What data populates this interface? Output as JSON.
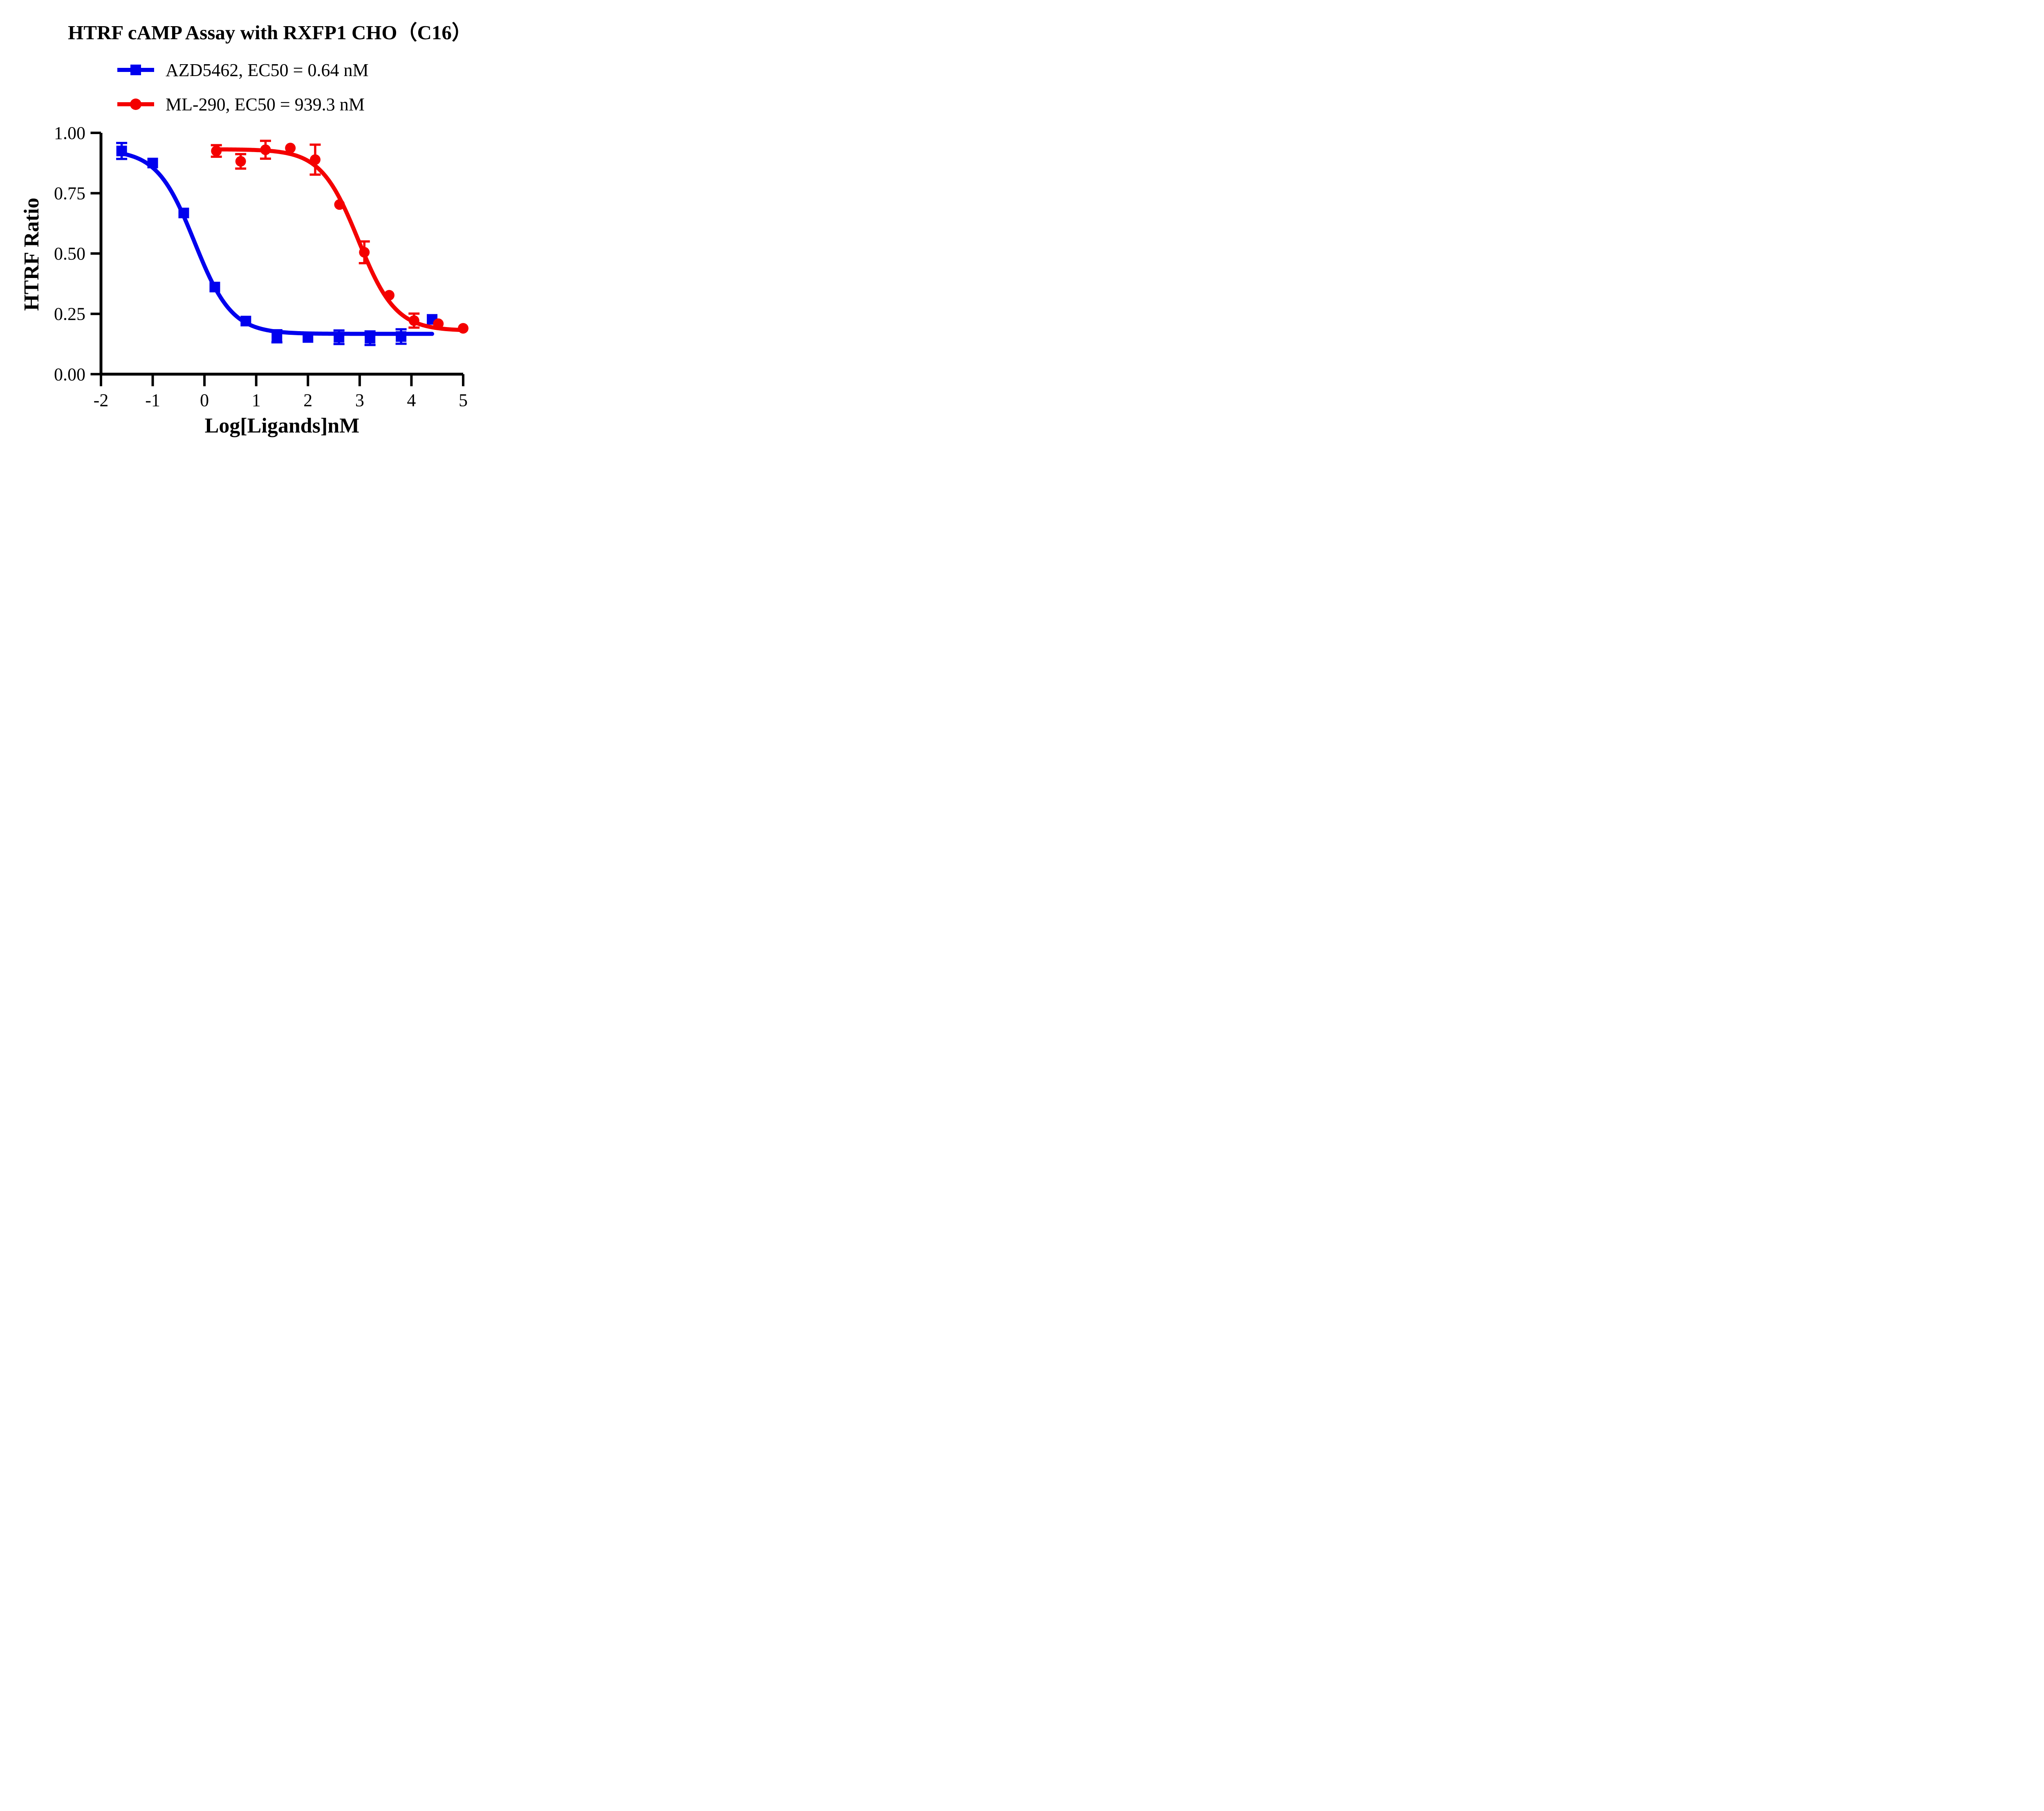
{
  "title": "HTRF cAMP Assay with RXFP1 CHO（C16）",
  "chart_data": {
    "type": "scatter",
    "title": "HTRF cAMP Assay with RXFP1 CHO（C16）",
    "xlabel": "Log[Ligands]nM",
    "ylabel": "HTRF Ratio",
    "xlim": [
      -2,
      5
    ],
    "ylim": [
      0,
      1
    ],
    "grid": false,
    "legend_position": "top-left",
    "x_ticks": [
      -2,
      -1,
      0,
      1,
      2,
      3,
      4,
      5
    ],
    "x_tick_labels": [
      "-2",
      "-1",
      "0",
      "1",
      "2",
      "3",
      "4",
      "5"
    ],
    "y_ticks": [
      0,
      0.25,
      0.5,
      0.75,
      1.0
    ],
    "y_tick_labels": [
      "0.00",
      "0.25",
      "0.50",
      "0.75",
      "1.00"
    ],
    "axis_color": "#000000",
    "series": [
      {
        "name": "AZD5462, EC50 = 0.64 nM",
        "ec50_nM": 0.64,
        "color": "#0000ee",
        "marker": "square",
        "x": [
          -1.6,
          -1.0,
          -0.4,
          0.2,
          0.8,
          1.4,
          2.0,
          2.6,
          3.2,
          3.8,
          4.4
        ],
        "y": [
          0.925,
          0.875,
          0.668,
          0.361,
          0.22,
          0.157,
          0.152,
          0.153,
          0.149,
          0.156,
          0.227
        ],
        "err": [
          0.033,
          null,
          null,
          null,
          null,
          0.025,
          null,
          0.028,
          0.028,
          0.03,
          null
        ],
        "fit": {
          "top": 0.93,
          "bottom": 0.167,
          "logEC50": -0.194,
          "hill": 1.2,
          "x_start": -1.62,
          "x_end": 4.4
        }
      },
      {
        "name": "ML-290, EC50 = 939.3 nM",
        "ec50_nM": 939.3,
        "color": "#f40000",
        "marker": "circle",
        "x": [
          0.23,
          0.7,
          1.18,
          1.66,
          2.14,
          2.61,
          3.09,
          3.57,
          4.05,
          4.52,
          5.0
        ],
        "y": [
          0.925,
          0.882,
          0.93,
          0.937,
          0.889,
          0.703,
          0.505,
          0.327,
          0.222,
          0.209,
          0.19
        ],
        "err": [
          0.024,
          0.03,
          0.037,
          null,
          0.062,
          null,
          0.045,
          null,
          0.029,
          null,
          null
        ],
        "fit": {
          "top": 0.932,
          "bottom": 0.18,
          "logEC50": 2.973,
          "hill": 1.2,
          "x_start": 0.23,
          "x_end": 5.0
        }
      }
    ]
  }
}
